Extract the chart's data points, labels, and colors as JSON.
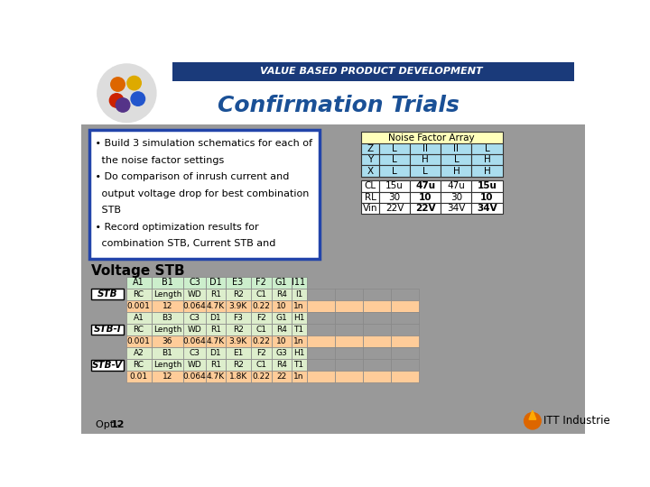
{
  "title": "Confirmation Trials",
  "title_color": "#1a5c96",
  "banner_color": "#2255aa",
  "banner_text": "VALUE BASED PRODUCT DEVELOPMENT",
  "bg_gray": "#aaaaaa",
  "bullet_lines": [
    " • Build 3 simulation schematics for each of",
    "   the noise factor settings",
    " • Do comparison of inrush current and",
    "   output voltage drop for best combination",
    "   STB",
    " • Record optimization results for",
    "   combination STB, Current STB and"
  ],
  "voltage_stb": "Voltage STB",
  "nf_title": "Noise Factor Array",
  "nf_data": [
    [
      "Z",
      "L",
      "II",
      "II",
      "L"
    ],
    [
      "Y",
      "L",
      "H",
      "L",
      "H"
    ],
    [
      "X",
      "L",
      "L",
      "H",
      "H"
    ]
  ],
  "cond_data": [
    [
      "CL",
      "15u",
      "47u",
      "47u",
      "15u"
    ],
    [
      "RL",
      "30",
      "10",
      "30",
      "10"
    ],
    [
      "Vin",
      "22V",
      "22V",
      "34V",
      "34V"
    ]
  ],
  "cond_bold": [
    2,
    4
  ],
  "main_headers": [
    "A1",
    "B1",
    "C3",
    "D1",
    "E3",
    "F2",
    "G1",
    "I11"
  ],
  "stb_groups": [
    {
      "label": "STB",
      "rows": [
        [
          "RC",
          "Length",
          "WD",
          "R1",
          "R2",
          "C1",
          "R4",
          "I1"
        ],
        [
          "0.001",
          "12",
          "0.064",
          "4.7K",
          "3.9K",
          "0.22",
          "10",
          "1n"
        ]
      ]
    },
    {
      "label": "STB-I",
      "rows": [
        [
          "A1",
          "B3",
          "C3",
          "D1",
          "F3",
          "F2",
          "G1",
          "H1"
        ],
        [
          "RC",
          "Length",
          "WD",
          "R1",
          "R2",
          "C1",
          "R4",
          "T1"
        ],
        [
          "0.001",
          "36",
          "0.064",
          "4.7K",
          "3.9K",
          "0.22",
          "10",
          "1n"
        ]
      ]
    },
    {
      "label": "STB-V",
      "rows": [
        [
          "A2",
          "B1",
          "C3",
          "D1",
          "E1",
          "F2",
          "G3",
          "H1"
        ],
        [
          "RC",
          "Length",
          "WD",
          "R1",
          "R2",
          "C1",
          "R4",
          "T1"
        ],
        [
          "0.01",
          "12",
          "0.064",
          "4.7K",
          "1.8K",
          "0.22",
          "22",
          "1n"
        ]
      ]
    }
  ],
  "footer_text": "Opt - ",
  "footer_bold": "12"
}
